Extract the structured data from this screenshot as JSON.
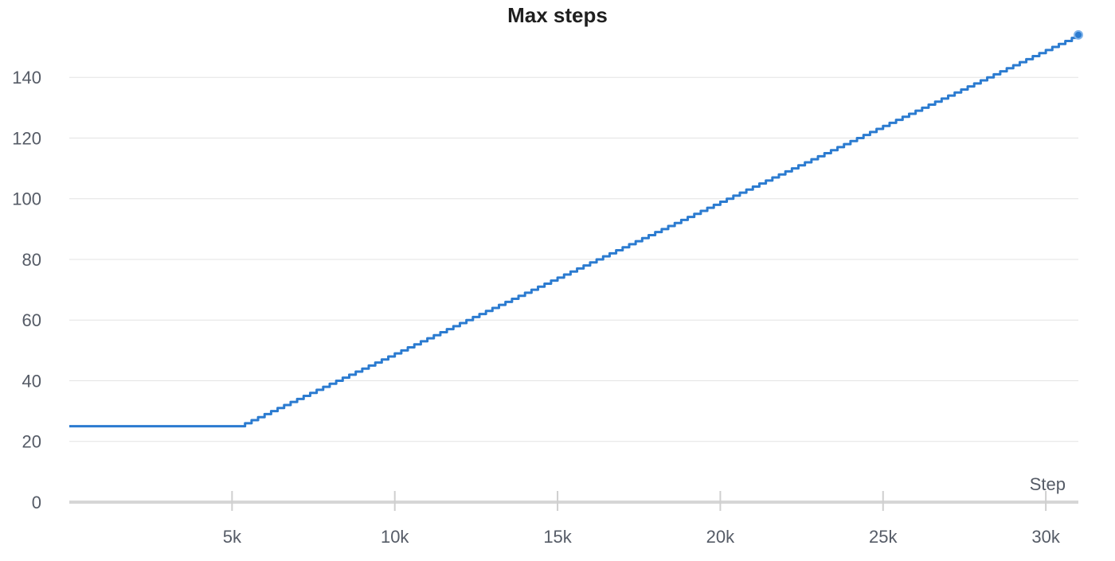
{
  "chart_data": {
    "type": "line",
    "title": "Max steps",
    "xlabel": "Step",
    "ylabel": "",
    "xlim": [
      0,
      31000
    ],
    "ylim": [
      0,
      155
    ],
    "x_ticks": [
      5000,
      10000,
      15000,
      20000,
      25000,
      30000
    ],
    "x_tick_labels": [
      "5k",
      "10k",
      "15k",
      "20k",
      "25k",
      "30k"
    ],
    "y_ticks": [
      0,
      20,
      40,
      60,
      80,
      100,
      120,
      140
    ],
    "y_tick_labels": [
      "0",
      "20",
      "40",
      "60",
      "80",
      "100",
      "120",
      "140"
    ],
    "grid": true,
    "legend": "none",
    "line_color": "#2b7bd0",
    "series": [
      {
        "x": [
          0,
          5000,
          5200,
          10000,
          15000,
          20000,
          25000,
          31000
        ],
        "y": [
          25,
          25,
          25,
          49,
          74,
          99,
          124,
          154
        ],
        "step": true,
        "end_marker": true
      }
    ]
  }
}
